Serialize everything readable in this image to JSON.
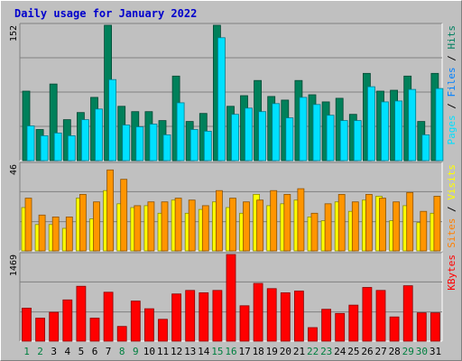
{
  "title": "Daily usage for January 2022",
  "chart_data": [
    {
      "type": "bar",
      "panel": "pages-files-hits",
      "ymax_label": "152",
      "ymax": 152,
      "legend": [
        {
          "text": "Pages",
          "color": "#00e0ff"
        },
        {
          "text": " / ",
          "color": "#000000"
        },
        {
          "text": "Files",
          "color": "#0080ff"
        },
        {
          "text": " / ",
          "color": "#000000"
        },
        {
          "text": "Hits",
          "color": "#008060"
        }
      ],
      "series": [
        {
          "name": "Hits",
          "color": "#00805a",
          "values": [
            78,
            35,
            86,
            46,
            54,
            71,
            152,
            61,
            55,
            55,
            45,
            95,
            44,
            53,
            152,
            61,
            73,
            90,
            72,
            68,
            90,
            74,
            66,
            70,
            52,
            98,
            78,
            79,
            95,
            44,
            98
          ]
        },
        {
          "name": "Files",
          "color": "#0040ff",
          "values": [
            16,
            12,
            14,
            14,
            17,
            19,
            30,
            18,
            14,
            16,
            15,
            21,
            12,
            14,
            30,
            17,
            18,
            20,
            19,
            15,
            18,
            18,
            17,
            16,
            14,
            19,
            19,
            16,
            20,
            14,
            20
          ]
        },
        {
          "name": "Pages",
          "color": "#00e0ff",
          "values": [
            39,
            28,
            31,
            28,
            46,
            58,
            91,
            40,
            38,
            41,
            29,
            65,
            35,
            33,
            138,
            52,
            59,
            55,
            64,
            48,
            71,
            63,
            51,
            45,
            45,
            83,
            66,
            67,
            80,
            29,
            81
          ]
        }
      ]
    },
    {
      "type": "bar",
      "panel": "sites-visits",
      "ymax_label": "46",
      "ymax": 46,
      "legend": [
        {
          "text": "Sites",
          "color": "#ff8000"
        },
        {
          "text": " / ",
          "color": "#000000"
        },
        {
          "text": "Visits",
          "color": "#ffff00"
        }
      ],
      "series": [
        {
          "name": "Visits",
          "color": "#ffff00",
          "values": [
            23,
            14,
            14,
            12,
            28,
            17,
            32,
            25,
            23,
            24,
            20,
            27,
            20,
            22,
            26,
            23,
            20,
            30,
            24,
            25,
            27,
            18,
            16,
            26,
            21,
            27,
            29,
            16,
            24,
            15,
            20
          ]
        },
        {
          "name": "Sites",
          "color": "#ff9500",
          "values": [
            28,
            19,
            18,
            18,
            30,
            26,
            43,
            38,
            24,
            26,
            26,
            28,
            27,
            24,
            32,
            28,
            26,
            27,
            32,
            30,
            33,
            20,
            25,
            30,
            26,
            30,
            28,
            26,
            31,
            21,
            29
          ]
        }
      ]
    },
    {
      "type": "bar",
      "panel": "kbytes",
      "ymax_label": "1469",
      "ymax": 1469,
      "legend": [
        {
          "text": "KBytes",
          "color": "#ff0000"
        }
      ],
      "series": [
        {
          "name": "KBytes",
          "color": "#ff0000",
          "values": [
            560,
            390,
            490,
            700,
            930,
            390,
            830,
            250,
            680,
            550,
            370,
            800,
            860,
            820,
            860,
            1469,
            600,
            980,
            890,
            820,
            850,
            230,
            540,
            470,
            610,
            910,
            860,
            410,
            940,
            480,
            480
          ]
        }
      ]
    }
  ],
  "xaxis": {
    "labels": [
      "1",
      "2",
      "3",
      "4",
      "5",
      "6",
      "7",
      "8",
      "9",
      "10",
      "11",
      "12",
      "13",
      "14",
      "15",
      "16",
      "17",
      "18",
      "19",
      "20",
      "21",
      "22",
      "23",
      "24",
      "25",
      "26",
      "27",
      "28",
      "29",
      "30",
      "31"
    ],
    "weekend_color": "#008040",
    "weekday_color": "#000000",
    "weekend_days": [
      1,
      2,
      8,
      9,
      15,
      16,
      22,
      23,
      29,
      30
    ]
  }
}
